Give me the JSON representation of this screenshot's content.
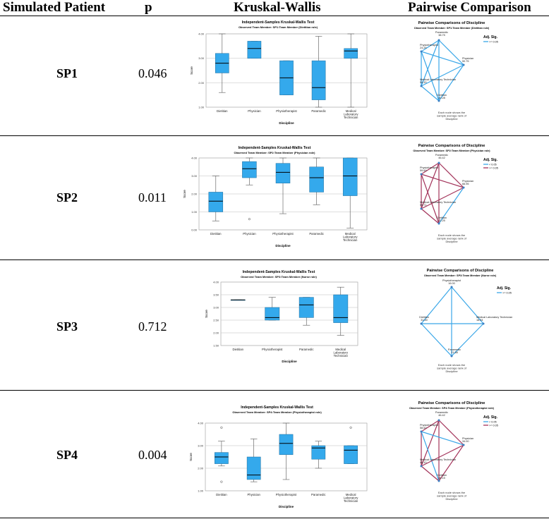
{
  "table": {
    "headers": [
      "Simulated Patient",
      "p",
      "Kruskal-Wallis",
      "Pairwise Comparison"
    ],
    "rows": [
      {
        "patient": "SP1",
        "p": "0.046"
      },
      {
        "patient": "SP2",
        "p": "0.011"
      },
      {
        "patient": "SP3",
        "p": "0.712"
      },
      {
        "patient": "SP4",
        "p": "0.004"
      }
    ]
  },
  "colors": {
    "box": "#34a9ec",
    "blue_line": "#3aa7e8",
    "red_line": "#a3335a",
    "ref": "#bdbdbd"
  },
  "chart_data": [
    {
      "type": "boxplot",
      "title": "Independent-Samples Kruskal-Wallis Test",
      "subtitle": "Observed Team Member: SP1:Team Member (Dietitian role)",
      "ylabel": "Score",
      "xlabel": "Discipline",
      "ylim": [
        1,
        4
      ],
      "yticks": [
        "1.00",
        "2.00",
        "3.00",
        "4.00"
      ],
      "categories": [
        "Dietitian",
        "Physician",
        "Physiotherapist",
        "Paramedic",
        "Medical Laboratory Technician"
      ],
      "boxes": [
        {
          "min": 1.6,
          "q1": 2.4,
          "median": 2.8,
          "q3": 3.2,
          "max": 4.0
        },
        {
          "min": 3.0,
          "q1": 3.0,
          "median": 3.4,
          "q3": 3.7,
          "max": 3.7
        },
        {
          "min": 1.5,
          "q1": 1.5,
          "median": 2.2,
          "q3": 2.9,
          "max": 2.9
        },
        {
          "min": 1.0,
          "q1": 1.3,
          "median": 1.8,
          "q3": 2.9,
          "max": 3.9
        },
        {
          "min": 1.0,
          "q1": 3.0,
          "median": 3.3,
          "q3": 3.4,
          "max": 4.0
        }
      ]
    },
    {
      "type": "boxplot",
      "title": "Independent-Samples Kruskal-Wallis Test",
      "subtitle": "Observed Team Member: SP2:Team Member (Physician role)",
      "ylabel": "Score",
      "xlabel": "Discipline",
      "ylim": [
        0,
        4
      ],
      "yticks": [
        "0.00",
        "1.00",
        "2.00",
        "3.00",
        "4.00"
      ],
      "categories": [
        "Dietitian",
        "Physician",
        "Physiotherapist",
        "Paramedic",
        "Medical Laboratory Technician"
      ],
      "boxes": [
        {
          "min": 0.5,
          "q1": 1.0,
          "median": 1.6,
          "q3": 2.1,
          "max": 3.0
        },
        {
          "min": 2.5,
          "q1": 2.9,
          "median": 3.4,
          "q3": 3.8,
          "max": 4.0,
          "outliers": [
            0.6
          ]
        },
        {
          "min": 0.9,
          "q1": 2.6,
          "median": 3.2,
          "q3": 3.7,
          "max": 4.0
        },
        {
          "min": 1.4,
          "q1": 2.1,
          "median": 2.9,
          "q3": 3.5,
          "max": 4.0
        },
        {
          "min": 0.1,
          "q1": 1.9,
          "median": 3.0,
          "q3": 4.0,
          "max": 4.0
        }
      ]
    },
    {
      "type": "boxplot",
      "title": "Independent-Samples Kruskal-Wallis Test",
      "subtitle": "Observed Team Member: SP3:Team Member (Nurse role)",
      "ylabel": "Score",
      "xlabel": "Discipline",
      "ylim": [
        1.5,
        4
      ],
      "yticks": [
        "1.50",
        "2.00",
        "2.50",
        "3.00",
        "3.50",
        "4.00"
      ],
      "categories": [
        "Dietitian",
        "Physiotherapist",
        "Paramedic",
        "Medical Laboratory Technician"
      ],
      "boxes": [
        {
          "min": 3.3,
          "q1": 3.3,
          "median": 3.3,
          "q3": 3.3,
          "max": 3.3
        },
        {
          "min": 2.5,
          "q1": 2.5,
          "median": 2.6,
          "q3": 3.0,
          "max": 3.4
        },
        {
          "min": 2.3,
          "q1": 2.6,
          "median": 3.1,
          "q3": 3.4,
          "max": 3.4
        },
        {
          "min": 1.9,
          "q1": 2.4,
          "median": 2.6,
          "q3": 3.5,
          "max": 3.8
        }
      ]
    },
    {
      "type": "boxplot",
      "title": "Independent-Samples Kruskal-Wallis Test",
      "subtitle": "Observed Team Member: SP4:Team Member (Physiotherapist role)",
      "ylabel": "Score",
      "xlabel": "Discipline",
      "ylim": [
        1,
        4
      ],
      "yticks": [
        "1.00",
        "2.00",
        "3.00",
        "4.00"
      ],
      "categories": [
        "Dietitian",
        "Physician",
        "Physiotherapist",
        "Paramedic",
        "Medical Laboratory Technician"
      ],
      "boxes": [
        {
          "min": 2.1,
          "q1": 2.2,
          "median": 2.5,
          "q3": 2.7,
          "max": 3.2,
          "outliers": [
            3.8,
            1.4
          ]
        },
        {
          "min": 1.4,
          "q1": 1.5,
          "median": 1.7,
          "q3": 2.5,
          "max": 3.3
        },
        {
          "min": 1.5,
          "q1": 2.6,
          "median": 3.1,
          "q3": 3.5,
          "max": 4.0
        },
        {
          "min": 2.0,
          "q1": 2.4,
          "median": 2.9,
          "q3": 3.0,
          "max": 3.2
        },
        {
          "min": 2.2,
          "q1": 2.2,
          "median": 2.8,
          "q3": 3.0,
          "max": 3.0,
          "outliers": [
            3.8
          ]
        }
      ]
    }
  ],
  "pairwise": [
    {
      "title": "Pairwise Comparisons of Discipline",
      "subtitle": "Observed Team Member: SP1:Team Member (Dietitian role)",
      "legend_title": "Adj. Sig.",
      "legend": [
        {
          "label": ">= 0.05",
          "color": "blue"
        }
      ],
      "note": [
        "Each node shows the",
        "sample average rank of",
        "Discipline"
      ],
      "nodes": [
        {
          "id": "Paramedic",
          "label": "Paramedic",
          "rank": "38.75"
        },
        {
          "id": "Physio",
          "label": "Physiotherapist",
          "rank": "24.25"
        },
        {
          "id": "Physician",
          "label": "Physician",
          "rank": "50.75"
        },
        {
          "id": "MLT",
          "label": "Medical Laboratory Technician",
          "rank": "54.33"
        },
        {
          "id": "Dietitian",
          "label": "Dietitian",
          "rank": "40.28"
        }
      ],
      "edges": [
        {
          "from": "Paramedic",
          "to": "Physio",
          "sig": "blue"
        },
        {
          "from": "Paramedic",
          "to": "Physician",
          "sig": "blue"
        },
        {
          "from": "Paramedic",
          "to": "MLT",
          "sig": "blue"
        },
        {
          "from": "Paramedic",
          "to": "Dietitian",
          "sig": "blue"
        },
        {
          "from": "Physio",
          "to": "Physician",
          "sig": "blue"
        },
        {
          "from": "Physio",
          "to": "MLT",
          "sig": "blue"
        },
        {
          "from": "Physio",
          "to": "Dietitian",
          "sig": "blue"
        },
        {
          "from": "Physician",
          "to": "MLT",
          "sig": "blue"
        },
        {
          "from": "Physician",
          "to": "Dietitian",
          "sig": "blue"
        },
        {
          "from": "MLT",
          "to": "Dietitian",
          "sig": "blue"
        }
      ]
    },
    {
      "title": "Pairwise Comparisons of Discipline",
      "subtitle": "Observed Team Member: SP2:Team Member (Physician role)",
      "legend_title": "Adj. Sig.",
      "legend": [
        {
          "label": "< 0.05",
          "color": "blue"
        },
        {
          "label": ">= 0.05",
          "color": "red"
        }
      ],
      "note": [
        "Each node shows the",
        "sample average rank of",
        "Discipline"
      ],
      "nodes": [
        {
          "id": "Paramedic",
          "label": "Paramedic",
          "rank": "46.42"
        },
        {
          "id": "Physio",
          "label": "Physiotherapist",
          "rank": "59.69"
        },
        {
          "id": "Physician",
          "label": "Physician",
          "rank": "66.95"
        },
        {
          "id": "MLT",
          "label": "Medical Laboratory Technician",
          "rank": "59.71"
        },
        {
          "id": "Dietitian",
          "label": "Dietitian",
          "rank": "22.25"
        }
      ],
      "edges": [
        {
          "from": "Paramedic",
          "to": "Physio",
          "sig": "red"
        },
        {
          "from": "Paramedic",
          "to": "Physician",
          "sig": "red"
        },
        {
          "from": "Paramedic",
          "to": "MLT",
          "sig": "red"
        },
        {
          "from": "Paramedic",
          "to": "Dietitian",
          "sig": "red"
        },
        {
          "from": "Physio",
          "to": "Physician",
          "sig": "red"
        },
        {
          "from": "Physio",
          "to": "MLT",
          "sig": "red"
        },
        {
          "from": "Physio",
          "to": "Dietitian",
          "sig": "red"
        },
        {
          "from": "Physician",
          "to": "MLT",
          "sig": "red"
        },
        {
          "from": "Physician",
          "to": "Dietitian",
          "sig": "blue"
        },
        {
          "from": "MLT",
          "to": "Dietitian",
          "sig": "red"
        }
      ]
    },
    {
      "title": "Pairwise Comparisons of Discipline",
      "subtitle": "Observed Team Member: SP3:Team Member (Nurse role)",
      "legend_title": "Adj. Sig.",
      "legend": [
        {
          "label": ">= 0.05",
          "color": "blue"
        }
      ],
      "note": [
        "Each node shows the",
        "sample average rank of",
        "Discipline"
      ],
      "nodes": [
        {
          "id": "Physio",
          "label": "Physiotherapist",
          "rank": "16.00"
        },
        {
          "id": "Dietitian",
          "label": "Dietitian",
          "rank": "31.50"
        },
        {
          "id": "MLT",
          "label": "Medical Laboratory Technician",
          "rank": "18.54"
        },
        {
          "id": "Paramedic",
          "label": "Paramedic",
          "rank": "21.58"
        }
      ],
      "edges": [
        {
          "from": "Physio",
          "to": "Dietitian",
          "sig": "blue"
        },
        {
          "from": "Physio",
          "to": "MLT",
          "sig": "blue"
        },
        {
          "from": "Physio",
          "to": "Paramedic",
          "sig": "blue"
        },
        {
          "from": "Dietitian",
          "to": "MLT",
          "sig": "blue"
        },
        {
          "from": "Dietitian",
          "to": "Paramedic",
          "sig": "blue"
        },
        {
          "from": "MLT",
          "to": "Paramedic",
          "sig": "blue"
        }
      ]
    },
    {
      "title": "Pairwise Comparisons of Discipline",
      "subtitle": "Observed Team Member: SP4:Team Member (Physiotherapist role)",
      "legend_title": "Adj. Sig.",
      "legend": [
        {
          "label": "< 0.05",
          "color": "blue"
        },
        {
          "label": ">= 0.05",
          "color": "red"
        }
      ],
      "note": [
        "Each node shows the",
        "sample average rank of",
        "Discipline"
      ],
      "nodes": [
        {
          "id": "Paramedic",
          "label": "Paramedic",
          "rank": "46.42"
        },
        {
          "id": "Physio",
          "label": "Physiotherapist",
          "rank": "58.62"
        },
        {
          "id": "Physician",
          "label": "Physician",
          "rank": "34.00"
        },
        {
          "id": "MLT",
          "label": "Medical Laboratory Technician",
          "rank": "46.10"
        },
        {
          "id": "Dietitian",
          "label": "Dietitian",
          "rank": "35.15"
        }
      ],
      "edges": [
        {
          "from": "Paramedic",
          "to": "Physio",
          "sig": "red"
        },
        {
          "from": "Paramedic",
          "to": "Physician",
          "sig": "red"
        },
        {
          "from": "Paramedic",
          "to": "MLT",
          "sig": "red"
        },
        {
          "from": "Paramedic",
          "to": "Dietitian",
          "sig": "red"
        },
        {
          "from": "Physio",
          "to": "Physician",
          "sig": "blue"
        },
        {
          "from": "Physio",
          "to": "MLT",
          "sig": "red"
        },
        {
          "from": "Physio",
          "to": "Dietitian",
          "sig": "blue"
        },
        {
          "from": "Physician",
          "to": "MLT",
          "sig": "red"
        },
        {
          "from": "Physician",
          "to": "Dietitian",
          "sig": "red"
        },
        {
          "from": "MLT",
          "to": "Dietitian",
          "sig": "red"
        }
      ]
    }
  ]
}
